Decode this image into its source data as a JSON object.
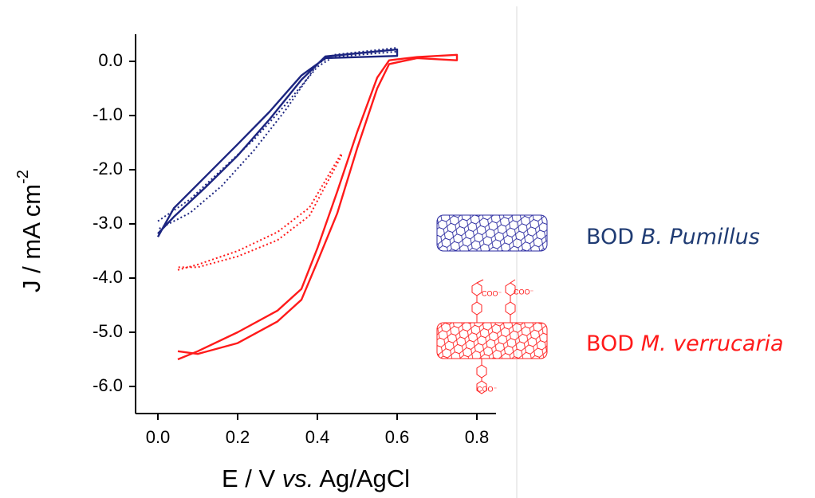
{
  "chart_data": {
    "type": "line",
    "xlabel": {
      "before": "E / V",
      "italic": "vs.",
      "after": "Ag/AgCl"
    },
    "ylabel": {
      "text": "J / mA cm",
      "sup": "-2"
    },
    "xlim": [
      -0.056,
      0.848
    ],
    "ylim": [
      -6.5,
      0.5
    ],
    "xticks": [
      {
        "value": 0,
        "label": "0.0"
      },
      0.2,
      0.4,
      0.6,
      0.8
    ],
    "yticks": [
      {
        "value": 0,
        "label": "0.0"
      },
      {
        "value": -1,
        "label": "-1.0"
      },
      {
        "value": -2,
        "label": "-2.0"
      },
      {
        "value": -3,
        "label": "-3.0"
      },
      {
        "value": -4,
        "label": "-4.0"
      },
      {
        "value": -5,
        "label": "-5.0"
      },
      {
        "value": -6,
        "label": "-6.0"
      }
    ],
    "series": [
      {
        "color": "#1c2580",
        "dotted": false,
        "x": [
          0,
          0.04,
          0.12,
          0.2,
          0.28,
          0.36,
          0.42,
          0.6,
          0.6,
          0.42,
          0.36,
          0.28,
          0.2,
          0.12,
          0.04,
          0
        ],
        "values": [
          -3.24,
          -2.71,
          -2.12,
          -1.53,
          -0.93,
          -0.26,
          0.06,
          0.1,
          0.22,
          0.09,
          -0.34,
          -1.07,
          -1.74,
          -2.32,
          -2.87,
          -3.18
        ]
      },
      {
        "color": "#1c2580",
        "dotted": true,
        "x": [
          0,
          0.08,
          0.16,
          0.24,
          0.32,
          0.4,
          0.44,
          0.6,
          0.6,
          0.44,
          0.4,
          0.32,
          0.24,
          0.16,
          0.08,
          0
        ],
        "values": [
          -2.95,
          -2.55,
          -2.0,
          -1.45,
          -0.8,
          -0.1,
          0.08,
          0.18,
          0.25,
          0.12,
          -0.05,
          -0.9,
          -1.65,
          -2.3,
          -2.8,
          -3.1
        ]
      },
      {
        "color": "#ff1a1a",
        "dotted": false,
        "x": [
          0.05,
          0.1,
          0.2,
          0.3,
          0.36,
          0.4,
          0.45,
          0.5,
          0.55,
          0.58,
          0.65,
          0.75,
          0.75,
          0.65,
          0.58,
          0.55,
          0.5,
          0.45,
          0.4,
          0.36,
          0.3,
          0.2,
          0.1,
          0.05
        ],
        "values": [
          -5.5,
          -5.35,
          -5.0,
          -4.6,
          -4.2,
          -3.45,
          -2.4,
          -1.3,
          -0.3,
          0.02,
          0.08,
          0.12,
          0.02,
          0.06,
          -0.05,
          -0.5,
          -1.6,
          -2.8,
          -3.7,
          -4.4,
          -4.8,
          -5.2,
          -5.4,
          -5.35
        ]
      },
      {
        "color": "#ff1a1a",
        "dotted": true,
        "x": [
          0.05,
          0.1,
          0.2,
          0.3,
          0.38,
          0.42,
          0.46,
          0.46,
          0.42,
          0.38,
          0.3,
          0.2,
          0.1,
          0.05
        ],
        "values": [
          -3.85,
          -3.75,
          -3.5,
          -3.15,
          -2.7,
          -2.2,
          -1.7,
          -1.75,
          -2.3,
          -2.85,
          -3.3,
          -3.6,
          -3.8,
          -3.8
        ]
      }
    ],
    "legend": [
      {
        "prefix": "BOD",
        "species": "B. Pumillus",
        "color": "#1f3b73"
      },
      {
        "prefix": "BOD",
        "species": "M. verrucaria",
        "color": "#ff1a1a"
      }
    ],
    "structure_labels": [
      "COO⁻",
      "COO⁻",
      "COO⁻"
    ]
  }
}
